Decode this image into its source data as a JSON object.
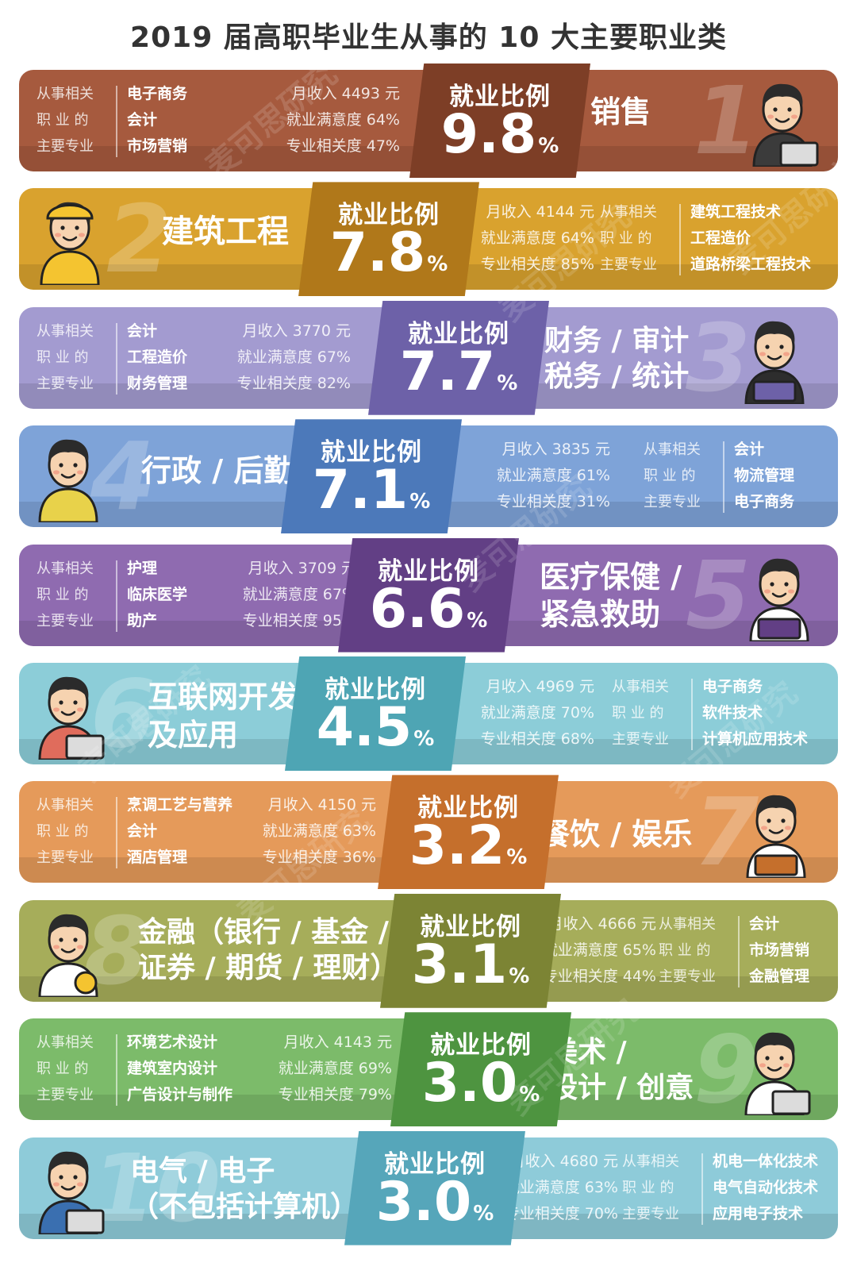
{
  "title": "2019 届高职毕业生从事的 10 大主要职业类",
  "rel_labels": [
    "从事相关",
    "职 业 的",
    "主要专业"
  ],
  "badge_label": "就业比例",
  "pct_sign": "%",
  "watermark": "麦可思研究",
  "rows": [
    {
      "rank": "1",
      "job_lines": [
        "销售"
      ],
      "ratio": "9.8",
      "income": "月收入 4493 元",
      "satisfaction": "就业满意度 64%",
      "relevance": "专业相关度 47%",
      "majors": [
        "电子商务",
        "会计",
        "市场营销"
      ],
      "color": "#a65a3e",
      "badge_color": "#7d3e26"
    },
    {
      "rank": "2",
      "job_lines": [
        "建筑工程"
      ],
      "ratio": "7.8",
      "income": "月收入 4144 元",
      "satisfaction": "就业满意度 64%",
      "relevance": "专业相关度 85%",
      "majors": [
        "建筑工程技术",
        "工程造价",
        "道路桥梁工程技术"
      ],
      "color": "#d9a22e",
      "badge_color": "#b0781a"
    },
    {
      "rank": "3",
      "job_lines": [
        "财务 / 审计",
        "税务 / 统计"
      ],
      "ratio": "7.7",
      "income": "月收入 3770 元",
      "satisfaction": "就业满意度 67%",
      "relevance": "专业相关度 82%",
      "majors": [
        "会计",
        "工程造价",
        "财务管理"
      ],
      "color": "#a39bd0",
      "badge_color": "#6d61a8"
    },
    {
      "rank": "4",
      "job_lines": [
        "行政 / 后勤"
      ],
      "ratio": "7.1",
      "income": "月收入 3835 元",
      "satisfaction": "就业满意度 61%",
      "relevance": "专业相关度 31%",
      "majors": [
        "会计",
        "物流管理",
        "电子商务"
      ],
      "color": "#7ea3d8",
      "badge_color": "#4c79ba"
    },
    {
      "rank": "5",
      "job_lines": [
        "医疗保健 /",
        "紧急救助"
      ],
      "ratio": "6.6",
      "income": "月收入 3709 元",
      "satisfaction": "就业满意度 67%",
      "relevance": "专业相关度 95%",
      "majors": [
        "护理",
        "临床医学",
        "助产"
      ],
      "color": "#8f6bb0",
      "badge_color": "#623f85"
    },
    {
      "rank": "6",
      "job_lines": [
        "互联网开发",
        "及应用"
      ],
      "ratio": "4.5",
      "income": "月收入 4969 元",
      "satisfaction": "就业满意度 70%",
      "relevance": "专业相关度 68%",
      "majors": [
        "电子商务",
        "软件技术",
        "计算机应用技术"
      ],
      "color": "#8ccdd8",
      "badge_color": "#4ea5b4"
    },
    {
      "rank": "7",
      "job_lines": [
        "餐饮 / 娱乐"
      ],
      "ratio": "3.2",
      "income": "月收入 4150 元",
      "satisfaction": "就业满意度 63%",
      "relevance": "专业相关度 36%",
      "majors": [
        "烹调工艺与营养",
        "会计",
        "酒店管理"
      ],
      "color": "#e59a5a",
      "badge_color": "#c56f2c"
    },
    {
      "rank": "8",
      "job_lines": [
        "金融（银行 / 基金 /",
        "证券 / 期货 / 理财）"
      ],
      "ratio": "3.1",
      "income": "月收入 4666 元",
      "satisfaction": "就业满意度 65%",
      "relevance": "专业相关度 44%",
      "majors": [
        "会计",
        "市场营销",
        "金融管理"
      ],
      "color": "#a6ad5a",
      "badge_color": "#7c8434"
    },
    {
      "rank": "9",
      "job_lines": [
        "美术 /",
        "设计 / 创意"
      ],
      "ratio": "3.0",
      "income": "月收入 4143 元",
      "satisfaction": "就业满意度 69%",
      "relevance": "专业相关度 79%",
      "majors": [
        "环境艺术设计",
        "建筑室内设计",
        "广告设计与制作"
      ],
      "color": "#7cbb6a",
      "badge_color": "#4e9440"
    },
    {
      "rank": "10",
      "job_lines": [
        "电气 / 电子",
        "（不包括计算机）"
      ],
      "ratio": "3.0",
      "income": "月收入 4680 元",
      "satisfaction": "就业满意度 63%",
      "relevance": "专业相关度 70%",
      "majors": [
        "机电一体化技术",
        "电气自动化技术",
        "应用电子技术"
      ],
      "color": "#8ecbd9",
      "badge_color": "#56a6ba"
    }
  ]
}
